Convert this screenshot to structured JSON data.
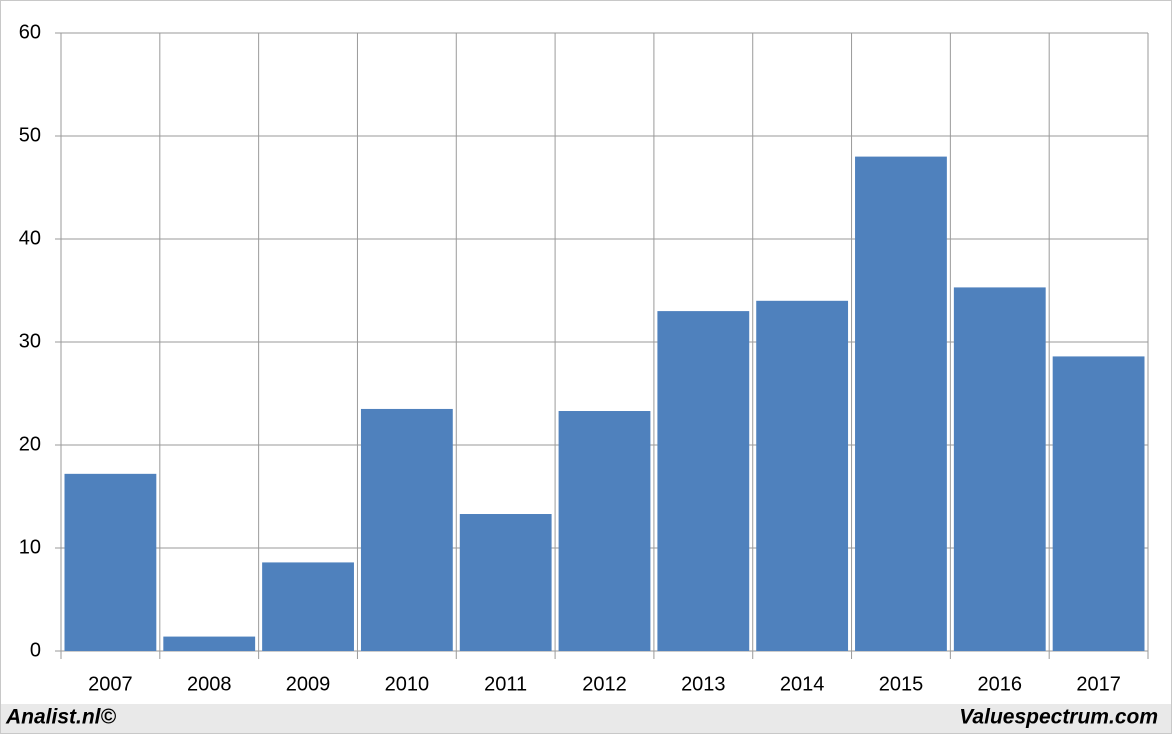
{
  "chart_data": {
    "type": "bar",
    "categories": [
      "2007",
      "2008",
      "2009",
      "2010",
      "2011",
      "2012",
      "2013",
      "2014",
      "2015",
      "2016",
      "2017"
    ],
    "values": [
      17.2,
      1.4,
      8.6,
      23.5,
      13.3,
      23.3,
      33.0,
      34.0,
      48.0,
      35.3,
      28.6
    ],
    "color": "#4f81bd",
    "ylim": [
      0,
      60
    ],
    "yticks": [
      0,
      10,
      20,
      30,
      40,
      50,
      60
    ],
    "grid": true
  },
  "footer": {
    "left": "Analist.nl©",
    "right": "Valuespectrum.com"
  }
}
